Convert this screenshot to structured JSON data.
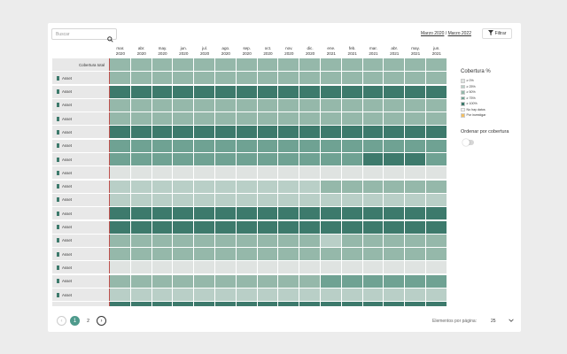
{
  "search": {
    "placeholder": "Buscar",
    "value": ""
  },
  "date_range": {
    "from": "Marzo 2020",
    "separator": " / ",
    "to": "Marzo 2022"
  },
  "filter": {
    "label": "Filtrar"
  },
  "columns": [
    "mar.\n2020",
    "abr.\n2020",
    "may.\n2020",
    "jun.\n2020",
    "jul.\n2020",
    "ago.\n2020",
    "sep.\n2020",
    "oct.\n2020",
    "nov.\n2020",
    "dic.\n2020",
    "ene.\n2021",
    "feb.\n2021",
    "mar.\n2021",
    "abr.\n2021",
    "may.\n2021",
    "jun.\n2021"
  ],
  "total_label": "Cobertura total",
  "asset_label": "Asset",
  "legend": {
    "title": "Cobertura %",
    "items": [
      {
        "label": "≥ 0%",
        "color": "#dfe3e1"
      },
      {
        "label": "≥ 25%",
        "color": "#b9cfc7"
      },
      {
        "label": "≥ 50%",
        "color": "#95b8aa"
      },
      {
        "label": "≥ 75%",
        "color": "#6fa293"
      },
      {
        "label": "≥ 100%",
        "color": "#3d7a6c"
      },
      {
        "label": "No hay datos",
        "color": "#f2f2f2"
      },
      {
        "label": "Por investigar",
        "color": "#f3c064"
      }
    ]
  },
  "sort": {
    "label": "Ordenar por cobertura",
    "enabled": false
  },
  "palette": [
    "#dfe3e1",
    "#b9cfc7",
    "#95b8aa",
    "#6fa293",
    "#3d7a6c"
  ],
  "rows": [
    {
      "type": "total",
      "levels": [
        2,
        2,
        2,
        2,
        2,
        2,
        2,
        2,
        2,
        2,
        2,
        2,
        2,
        2,
        2,
        2
      ]
    },
    {
      "type": "asset",
      "levels": [
        2,
        2,
        2,
        2,
        2,
        2,
        2,
        2,
        2,
        2,
        2,
        2,
        2,
        2,
        2,
        2
      ]
    },
    {
      "type": "asset",
      "levels": [
        4,
        4,
        4,
        4,
        4,
        4,
        4,
        4,
        4,
        4,
        4,
        4,
        4,
        4,
        4,
        4
      ]
    },
    {
      "type": "asset",
      "levels": [
        2,
        2,
        2,
        2,
        2,
        2,
        2,
        2,
        2,
        2,
        2,
        2,
        2,
        2,
        2,
        2
      ]
    },
    {
      "type": "asset",
      "levels": [
        2,
        2,
        2,
        2,
        2,
        2,
        2,
        2,
        2,
        2,
        2,
        2,
        2,
        2,
        2,
        2
      ]
    },
    {
      "type": "asset",
      "levels": [
        4,
        4,
        4,
        4,
        4,
        4,
        4,
        4,
        4,
        4,
        4,
        4,
        4,
        4,
        4,
        4
      ]
    },
    {
      "type": "asset",
      "levels": [
        3,
        3,
        3,
        3,
        3,
        3,
        3,
        3,
        3,
        3,
        3,
        3,
        3,
        3,
        3,
        3
      ]
    },
    {
      "type": "asset",
      "levels": [
        3,
        3,
        3,
        3,
        3,
        3,
        3,
        3,
        3,
        3,
        3,
        3,
        4,
        4,
        4,
        3
      ]
    },
    {
      "type": "asset",
      "levels": [
        0,
        0,
        0,
        0,
        0,
        0,
        0,
        0,
        0,
        0,
        0,
        0,
        0,
        0,
        0,
        0
      ]
    },
    {
      "type": "asset",
      "levels": [
        1,
        1,
        1,
        1,
        1,
        1,
        1,
        1,
        1,
        1,
        2,
        2,
        2,
        2,
        2,
        2
      ]
    },
    {
      "type": "asset",
      "levels": [
        1,
        1,
        1,
        1,
        1,
        1,
        1,
        1,
        1,
        1,
        1,
        1,
        1,
        1,
        1,
        1
      ]
    },
    {
      "type": "asset",
      "levels": [
        4,
        4,
        4,
        4,
        4,
        4,
        4,
        4,
        4,
        4,
        4,
        4,
        4,
        4,
        4,
        4
      ]
    },
    {
      "type": "asset",
      "levels": [
        4,
        4,
        4,
        4,
        4,
        4,
        4,
        4,
        4,
        4,
        4,
        4,
        4,
        4,
        4,
        4
      ]
    },
    {
      "type": "asset",
      "levels": [
        2,
        2,
        2,
        2,
        2,
        2,
        2,
        2,
        2,
        2,
        1,
        2,
        2,
        2,
        2,
        2
      ]
    },
    {
      "type": "asset",
      "levels": [
        2,
        2,
        2,
        2,
        2,
        2,
        2,
        2,
        2,
        2,
        2,
        2,
        2,
        2,
        2,
        2
      ]
    },
    {
      "type": "asset",
      "levels": [
        0,
        0,
        0,
        0,
        0,
        0,
        0,
        0,
        0,
        0,
        0,
        0,
        0,
        0,
        0,
        0
      ]
    },
    {
      "type": "asset",
      "levels": [
        2,
        2,
        2,
        2,
        2,
        2,
        2,
        2,
        2,
        2,
        3,
        3,
        3,
        3,
        3,
        3
      ]
    },
    {
      "type": "asset",
      "levels": [
        1,
        1,
        1,
        1,
        1,
        1,
        1,
        1,
        1,
        1,
        1,
        1,
        1,
        1,
        1,
        1
      ]
    },
    {
      "type": "asset",
      "levels": [
        4,
        4,
        4,
        4,
        4,
        4,
        4,
        4,
        4,
        4,
        4,
        4,
        4,
        4,
        4,
        4
      ]
    }
  ],
  "pagination": {
    "pages": [
      "1",
      "2"
    ],
    "current": "1",
    "per_page_label": "Elementos por página:",
    "per_page_value": "25"
  }
}
